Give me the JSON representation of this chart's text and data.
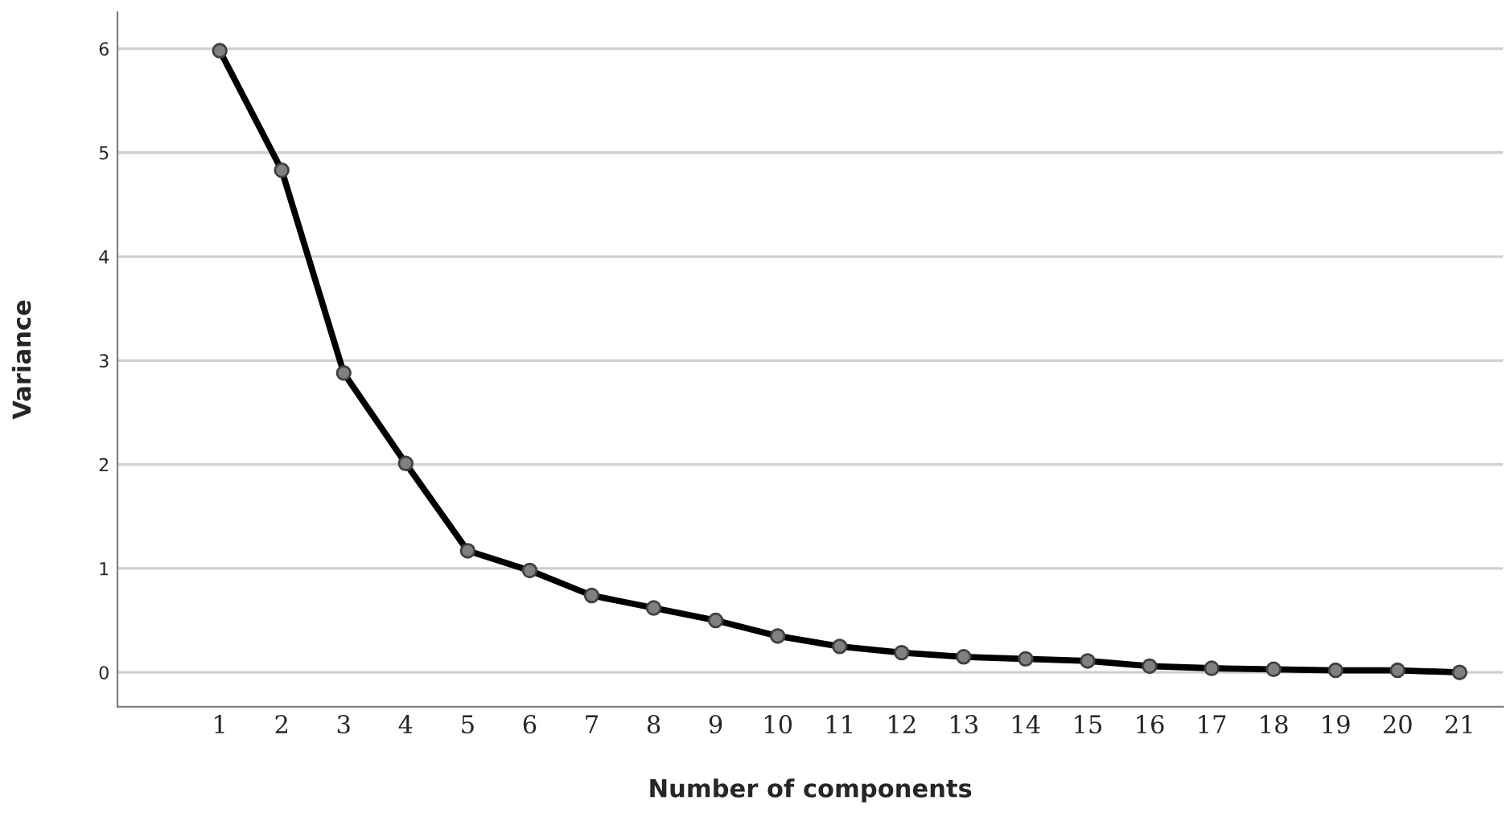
{
  "chart_data": {
    "type": "line",
    "xlabel": "Number of components",
    "ylabel": "Variance",
    "categories": [
      "1",
      "2",
      "3",
      "4",
      "5",
      "6",
      "7",
      "8",
      "9",
      "10",
      "11",
      "12",
      "13",
      "14",
      "15",
      "16",
      "17",
      "18",
      "19",
      "20",
      "21"
    ],
    "series": [
      {
        "color": "#000000",
        "values": [
          5.98,
          4.83,
          2.88,
          2.01,
          1.17,
          0.98,
          0.74,
          0.62,
          0.5,
          0.35,
          0.25,
          0.19,
          0.15,
          0.13,
          0.11,
          0.06,
          0.04,
          0.03,
          0.02,
          0.02,
          0.0
        ]
      }
    ],
    "ylim": [
      -0.33,
      6.35
    ],
    "yticks": [
      0,
      1,
      2,
      3,
      4,
      5,
      6
    ],
    "grid": "y",
    "marker": "circle",
    "line_style": "solid"
  }
}
